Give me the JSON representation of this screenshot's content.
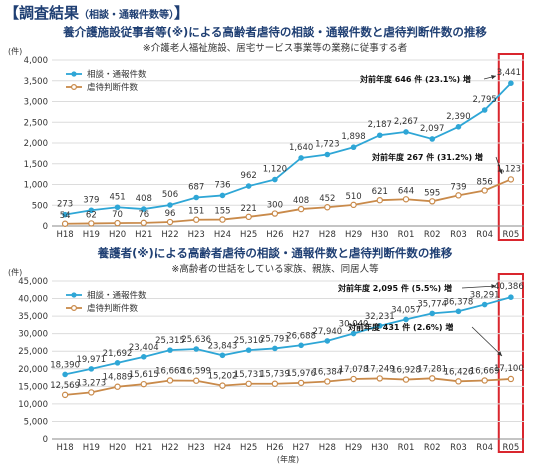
{
  "header": {
    "title": "【調査結果",
    "subtitle": "（相談・通報件数等）",
    "close": "】"
  },
  "chart_data": [
    {
      "type": "line",
      "title": "養介護施設従事者等(※)による高齢者虐待の相談・通報件数と虐待判断件数の推移",
      "subtitle": "※介護老人福祉施設、居宅サービス事業等の業務に従事する者",
      "ylabel": "(件)",
      "xlabel": "",
      "ylim": [
        0,
        4000
      ],
      "yticks": [
        "0",
        "500",
        "1,000",
        "1,500",
        "2,000",
        "2,500",
        "3,000",
        "3,500",
        "4,000"
      ],
      "categories": [
        "H18",
        "H19",
        "H20",
        "H21",
        "H22",
        "H23",
        "H24",
        "H25",
        "H26",
        "H27",
        "H28",
        "H29",
        "H30",
        "R01",
        "R02",
        "R03",
        "R04",
        "R05"
      ],
      "grid": true,
      "legend_position": "top-left",
      "highlight_category": "R05",
      "series": [
        {
          "name": "相談・通報件数",
          "color": "#2ea6d6",
          "values": [
            273,
            379,
            451,
            408,
            506,
            687,
            736,
            962,
            1120,
            1640,
            1723,
            1898,
            2187,
            2267,
            2097,
            2390,
            2795,
            3441
          ],
          "labels": [
            "273",
            "379",
            "451",
            "408",
            "506",
            "687",
            "736",
            "962",
            "1,120",
            "1,640",
            "1,723",
            "1,898",
            "2,187",
            "2,267",
            "2,097",
            "2,390",
            "2,795",
            "3,441"
          ]
        },
        {
          "name": "虐待判断件数",
          "color": "#c98a4a",
          "values": [
            54,
            62,
            70,
            76,
            96,
            151,
            155,
            221,
            300,
            408,
            452,
            510,
            621,
            644,
            595,
            739,
            856,
            1123
          ],
          "labels": [
            "54",
            "62",
            "70",
            "76",
            "96",
            "151",
            "155",
            "221",
            "300",
            "408",
            "452",
            "510",
            "621",
            "644",
            "595",
            "739",
            "856",
            "1,123"
          ]
        }
      ],
      "annotations": [
        {
          "text": "対前年度 646 件 (23.1%) 増",
          "series": 0
        },
        {
          "text": "対前年度 267 件 (31.2%) 増",
          "series": 1
        }
      ]
    },
    {
      "type": "line",
      "title": "養護者(※)による高齢者虐待の相談・通報件数と虐待判断件数の推移",
      "subtitle": "※高齢者の世話をしている家族、親族、同居人等",
      "ylabel": "(件)",
      "xlabel": "(年度)",
      "ylim": [
        0,
        45000
      ],
      "yticks": [
        "0",
        "5,000",
        "10,000",
        "15,000",
        "20,000",
        "25,000",
        "30,000",
        "35,000",
        "40,000",
        "45,000"
      ],
      "categories": [
        "H18",
        "H19",
        "H20",
        "H21",
        "H22",
        "H23",
        "H24",
        "H25",
        "H26",
        "H27",
        "H28",
        "H29",
        "H30",
        "R01",
        "R02",
        "R03",
        "R04",
        "R05"
      ],
      "grid": true,
      "legend_position": "top-left",
      "highlight_category": "R05",
      "series": [
        {
          "name": "相談・通報件数",
          "color": "#2ea6d6",
          "values": [
            18390,
            19971,
            21692,
            23404,
            25315,
            25636,
            23843,
            25310,
            25791,
            26688,
            27940,
            30040,
            32231,
            34057,
            35774,
            36378,
            38291,
            40386
          ],
          "labels": [
            "18,390",
            "19,971",
            "21,692",
            "23,404",
            "25,315",
            "25,636",
            "23,843",
            "25,310",
            "25,791",
            "26,688",
            "27,940",
            "30,040",
            "32,231",
            "34,057",
            "35,774",
            "36,378",
            "38,291",
            "40,386"
          ]
        },
        {
          "name": "虐待判断件数",
          "color": "#c98a4a",
          "values": [
            12569,
            13273,
            14889,
            15615,
            16668,
            16599,
            15202,
            15731,
            15739,
            15976,
            16384,
            17078,
            17249,
            16928,
            17281,
            16426,
            16669,
            17100
          ],
          "labels": [
            "12,569",
            "13,273",
            "14,889",
            "15,615",
            "16,668",
            "16,599",
            "15,202",
            "15,731",
            "15,739",
            "15,976",
            "16,384",
            "17,078",
            "17,249",
            "16,928",
            "17,281",
            "16,426",
            "16,669",
            "17,100"
          ]
        }
      ],
      "annotations": [
        {
          "text": "対前年度 2,095 件 (5.5%) 増",
          "series": 0
        },
        {
          "text": "対前年度 431 件 (2.6%) 増",
          "series": 1
        }
      ]
    }
  ]
}
